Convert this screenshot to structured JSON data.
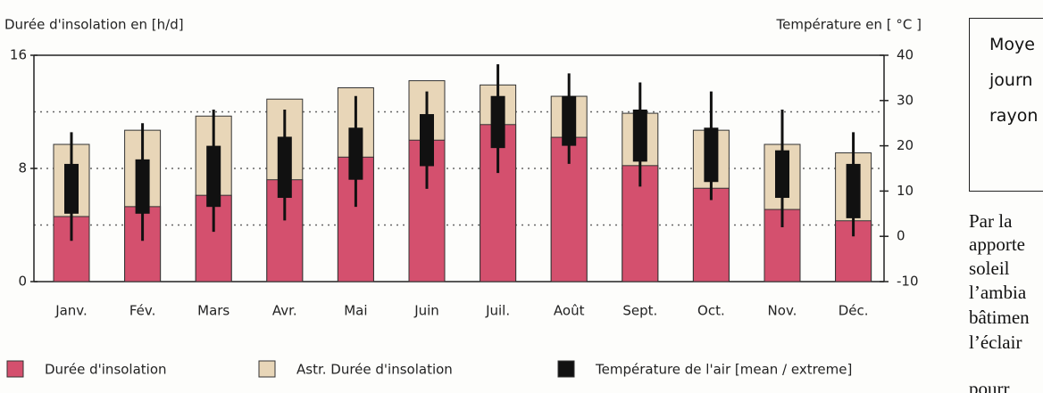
{
  "chart_data": {
    "type": "bar",
    "ylabel": "Durée d'insolation en [h/d]",
    "y2label": "Température en [ °C ]",
    "categories": [
      "Janv.",
      "Fév.",
      "Mars",
      "Avr.",
      "Mai",
      "Juin",
      "Juil.",
      "Août",
      "Sept.",
      "Oct.",
      "Nov.",
      "Déc."
    ],
    "series": [
      {
        "name": "Astr. Durée d'insolation",
        "color": "#e8d6b8",
        "values": [
          9.7,
          10.7,
          11.7,
          12.9,
          13.7,
          14.2,
          13.9,
          13.1,
          11.9,
          10.7,
          9.7,
          9.1
        ]
      },
      {
        "name": "Durée d'insolation",
        "color": "#d4506e",
        "values": [
          4.6,
          5.3,
          6.1,
          7.2,
          8.8,
          10.0,
          11.1,
          10.2,
          8.2,
          6.6,
          5.1,
          4.3
        ]
      },
      {
        "name": "Température de l'air [mean / extreme]",
        "color": "#111111",
        "axis": "y2",
        "high": [
          16,
          17,
          20,
          22,
          24,
          27,
          31,
          31,
          28,
          24,
          19,
          16
        ],
        "low": [
          5,
          5,
          6.5,
          8.5,
          12.5,
          15.5,
          19.5,
          20,
          16.5,
          12,
          8.5,
          4
        ],
        "max": [
          23,
          25,
          28,
          28,
          31,
          32,
          38,
          36,
          34,
          32,
          28,
          23
        ],
        "min": [
          -1,
          -1,
          1,
          3.5,
          6.5,
          10.5,
          14,
          16,
          11,
          8,
          2,
          0
        ]
      }
    ],
    "ylim": [
      0,
      16
    ],
    "yticks": [
      0,
      8,
      16
    ],
    "ygrid": [
      4,
      8,
      12
    ],
    "y2lim": [
      -10,
      40
    ],
    "y2ticks": [
      -10,
      0,
      10,
      20,
      30,
      40
    ]
  },
  "side_text": {
    "box_lines": [
      "Moye",
      "journ",
      "rayon"
    ],
    "paragraph_lines": [
      "Par la",
      "apporte",
      "soleil",
      "l’ambia",
      "bâtimen",
      "l’éclair",
      "pourr"
    ]
  }
}
